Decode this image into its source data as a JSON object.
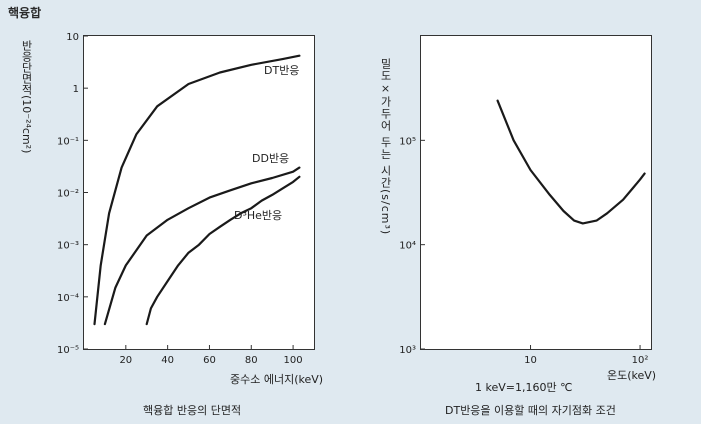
{
  "page_title": "핵융합",
  "chart_data": [
    {
      "type": "line",
      "scale": "log-y",
      "title": "핵융합 반응의 단면적",
      "xlabel": "중수소 에너지(keV)",
      "ylabel": "반응단면적(10⁻²⁴cm²)",
      "xlim": [
        0,
        110
      ],
      "ylim_log10": [
        -5,
        1
      ],
      "x_ticks": [
        20,
        40,
        60,
        80,
        100
      ],
      "y_ticks": [
        "10",
        "1",
        "10⁻¹",
        "10⁻²",
        "10⁻³",
        "10⁻⁴",
        "10⁻⁵"
      ],
      "y_tick_exponents": [
        1,
        0,
        -1,
        -2,
        -3,
        -4,
        -5
      ],
      "series": [
        {
          "name": "DT반응",
          "x": [
            5,
            8,
            12,
            18,
            25,
            35,
            50,
            65,
            80,
            95,
            103
          ],
          "y": [
            3e-05,
            0.0004,
            0.004,
            0.03,
            0.13,
            0.45,
            1.2,
            2.0,
            2.8,
            3.6,
            4.2
          ]
        },
        {
          "name": "DD반응",
          "x": [
            10,
            15,
            20,
            30,
            40,
            50,
            60,
            70,
            80,
            90,
            100,
            103
          ],
          "y": [
            3e-05,
            0.00015,
            0.0004,
            0.0015,
            0.003,
            0.005,
            0.008,
            0.011,
            0.015,
            0.019,
            0.025,
            0.03
          ]
        },
        {
          "name": "D³He반응",
          "x": [
            30,
            32,
            35,
            40,
            45,
            50,
            55,
            60,
            65,
            70,
            75,
            80,
            85,
            90,
            95,
            100,
            103
          ],
          "y": [
            3e-05,
            6e-05,
            0.0001,
            0.0002,
            0.0004,
            0.0007,
            0.001,
            0.0016,
            0.0022,
            0.003,
            0.004,
            0.005,
            0.007,
            0.009,
            0.012,
            0.016,
            0.02
          ]
        }
      ]
    },
    {
      "type": "line",
      "scale": "log-log",
      "title": "DT반응을 이용할 때의 자기점화 조건",
      "xlabel": "온도(keV)",
      "ylabel": "밀도×가두어 두는 시간(s/cm³)",
      "xlim_log10": [
        0,
        2.1
      ],
      "ylim_log10": [
        3,
        6
      ],
      "x_ticks": [
        "10",
        "10²"
      ],
      "x_tick_exponents": [
        1,
        2
      ],
      "y_ticks": [
        "10⁵",
        "10⁴",
        "10³"
      ],
      "y_tick_exponents": [
        5,
        4,
        3
      ],
      "note": "1 keV=1,160만 ℃",
      "series": [
        {
          "name": "",
          "x": [
            5,
            7,
            10,
            15,
            20,
            25,
            30,
            40,
            50,
            70,
            100,
            110
          ],
          "y": [
            240000,
            100000,
            52000,
            30000,
            21000,
            17000,
            16000,
            17000,
            20000,
            27000,
            42000,
            48000
          ]
        }
      ]
    }
  ]
}
